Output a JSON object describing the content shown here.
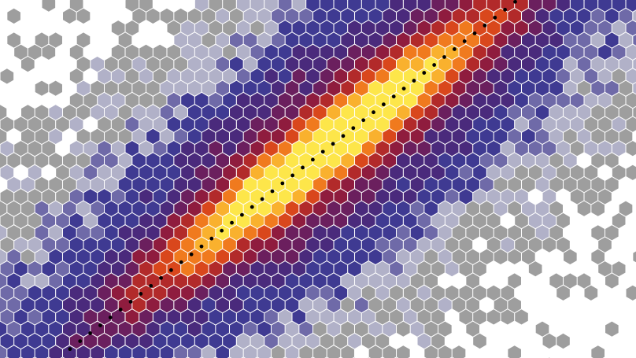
{
  "chart_data": {
    "type": "heatmap",
    "subtype": "hexbin",
    "title": "",
    "xlabel": "",
    "ylabel": "",
    "xlim": [
      0,
      1
    ],
    "ylim": [
      0,
      1
    ],
    "grid": false,
    "legend": "none",
    "density_model": {
      "ridge_start": [
        0.11,
        0.03
      ],
      "ridge_end": [
        0.81,
        1.0
      ],
      "peak_position": 0.58,
      "core_width": 0.045,
      "halo_width": 0.14,
      "sparse_width": 0.28
    },
    "colormap": [
      "#9e9e9e",
      "#b1b1c8",
      "#6f6aa8",
      "#3f3a92",
      "#4a2a7c",
      "#6b1f5e",
      "#8f1c3e",
      "#b22a2a",
      "#d9471c",
      "#f07a1e",
      "#f9b12e",
      "#fde64a"
    ],
    "trend_line": {
      "style": "dotted",
      "color": "#000000",
      "points": [
        [
          0.11,
          0.025
        ],
        [
          0.81,
          0.995
        ]
      ]
    }
  }
}
